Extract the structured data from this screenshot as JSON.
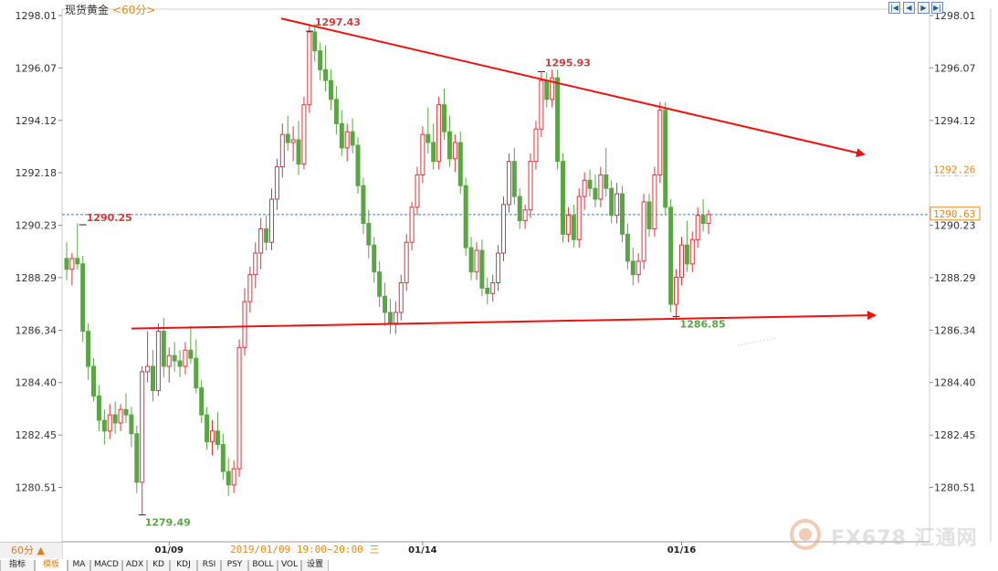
{
  "header": {
    "title": "现货黄金",
    "period": "<60分>"
  },
  "controls": {
    "first_icon": "first-page-icon",
    "prev_icon": "prev-page-icon",
    "next_icon": "next-page-icon",
    "last_icon": "last-page-icon"
  },
  "footer": {
    "period_selector": "60分 ▲",
    "tabs": [
      "指标",
      "模板",
      "MA",
      "MACD",
      "ADX",
      "KD",
      "KDJ",
      "RSI",
      "PSY",
      "BOLL",
      "VOL",
      "设置"
    ],
    "active_tab": "模板"
  },
  "watermark": "FX678 汇通网",
  "colors": {
    "up": "#e0333a",
    "down": "#5aa545",
    "trendline": "#ee1111",
    "current_line": "#4a7cc0",
    "orange": "#e08a1a"
  },
  "chart_data": {
    "type": "candlestick",
    "title": "现货黄金",
    "period": "60分",
    "y_ticks": [
      "1298.01",
      "1296.07",
      "1294.12",
      "1292.18",
      "1290.23",
      "1288.29",
      "1286.34",
      "1284.40",
      "1282.45",
      "1280.51"
    ],
    "ylim": [
      1279.0,
      1298.5
    ],
    "x_labels": [
      "01/09",
      "01/14",
      "01/16"
    ],
    "crosshair_label": "2019/01/09 19:00~20:00 三",
    "price_labels": [
      {
        "text": "1297.43",
        "value": 1297.43
      },
      {
        "text": "1295.93",
        "value": 1295.93
      },
      {
        "text": "1290.25",
        "value": 1290.25
      },
      {
        "text": "1286.85",
        "value": 1286.85
      },
      {
        "text": "1279.49",
        "value": 1279.49
      }
    ],
    "right_axis_tags": [
      {
        "text": "1292.26",
        "value": 1292.26
      },
      {
        "text": "1290.63",
        "value": 1290.63
      }
    ],
    "current_price": 1290.63,
    "trendlines": [
      {
        "name": "resistance",
        "from": [
          0,
          1297.9
        ],
        "to": [
          118,
          1292.3
        ]
      },
      {
        "name": "support",
        "from": [
          12,
          1286.4
        ],
        "to": [
          119,
          1286.8
        ]
      }
    ],
    "grid": true,
    "candles": [
      [
        1289.0,
        1289.6,
        1288.2,
        1288.6
      ],
      [
        1288.6,
        1289.2,
        1288.0,
        1289.0
      ],
      [
        1289.0,
        1290.3,
        1288.6,
        1288.8
      ],
      [
        1288.8,
        1289.1,
        1285.9,
        1286.3
      ],
      [
        1286.3,
        1286.6,
        1284.5,
        1285.0
      ],
      [
        1285.0,
        1285.3,
        1283.7,
        1283.9
      ],
      [
        1283.9,
        1284.3,
        1282.6,
        1283.0
      ],
      [
        1283.0,
        1283.4,
        1282.1,
        1282.6
      ],
      [
        1282.6,
        1283.6,
        1282.3,
        1283.2
      ],
      [
        1283.2,
        1283.7,
        1282.5,
        1282.9
      ],
      [
        1282.9,
        1283.6,
        1282.6,
        1283.4
      ],
      [
        1283.4,
        1284.0,
        1282.9,
        1283.2
      ],
      [
        1283.2,
        1283.5,
        1282.0,
        1282.5
      ],
      [
        1282.5,
        1282.8,
        1280.3,
        1280.7
      ],
      [
        1280.7,
        1285.0,
        1279.5,
        1284.8
      ],
      [
        1284.8,
        1286.3,
        1284.4,
        1285.0
      ],
      [
        1285.0,
        1285.6,
        1283.7,
        1284.1
      ],
      [
        1284.1,
        1286.6,
        1283.9,
        1286.3
      ],
      [
        1286.3,
        1286.8,
        1284.6,
        1285.0
      ],
      [
        1285.0,
        1285.7,
        1284.4,
        1285.4
      ],
      [
        1285.4,
        1285.9,
        1284.8,
        1285.2
      ],
      [
        1285.2,
        1285.6,
        1284.6,
        1285.0
      ],
      [
        1285.0,
        1285.9,
        1284.7,
        1285.6
      ],
      [
        1285.6,
        1286.5,
        1285.1,
        1285.3
      ],
      [
        1285.3,
        1286.0,
        1284.0,
        1284.2
      ],
      [
        1284.2,
        1284.5,
        1282.9,
        1283.2
      ],
      [
        1283.2,
        1283.5,
        1281.9,
        1282.2
      ],
      [
        1282.2,
        1283.0,
        1281.7,
        1282.6
      ],
      [
        1282.6,
        1283.3,
        1281.9,
        1282.1
      ],
      [
        1282.1,
        1282.5,
        1280.8,
        1281.1
      ],
      [
        1281.1,
        1281.6,
        1280.2,
        1280.6
      ],
      [
        1280.6,
        1281.5,
        1280.3,
        1281.2
      ],
      [
        1281.2,
        1286.0,
        1280.9,
        1285.7
      ],
      [
        1285.7,
        1287.9,
        1285.4,
        1287.4
      ],
      [
        1287.4,
        1288.7,
        1287.0,
        1288.4
      ],
      [
        1288.4,
        1289.6,
        1287.9,
        1289.2
      ],
      [
        1289.2,
        1290.5,
        1288.6,
        1290.1
      ],
      [
        1290.1,
        1290.6,
        1289.3,
        1289.6
      ],
      [
        1289.6,
        1291.6,
        1289.3,
        1291.2
      ],
      [
        1291.2,
        1292.7,
        1290.8,
        1292.4
      ],
      [
        1292.4,
        1294.0,
        1292.0,
        1293.6
      ],
      [
        1293.6,
        1294.3,
        1293.0,
        1293.3
      ],
      [
        1293.3,
        1293.9,
        1292.6,
        1293.4
      ],
      [
        1293.4,
        1294.1,
        1292.1,
        1292.5
      ],
      [
        1292.5,
        1295.0,
        1292.3,
        1294.7
      ],
      [
        1294.7,
        1297.7,
        1294.4,
        1297.4
      ],
      [
        1297.4,
        1297.7,
        1296.3,
        1296.7
      ],
      [
        1296.7,
        1297.0,
        1295.6,
        1296.0
      ],
      [
        1296.0,
        1296.9,
        1295.2,
        1295.6
      ],
      [
        1295.6,
        1296.0,
        1294.5,
        1294.9
      ],
      [
        1294.9,
        1295.4,
        1293.6,
        1294.0
      ],
      [
        1294.0,
        1294.5,
        1292.8,
        1293.1
      ],
      [
        1293.1,
        1294.0,
        1292.6,
        1293.7
      ],
      [
        1293.7,
        1294.2,
        1292.9,
        1293.2
      ],
      [
        1293.2,
        1293.5,
        1291.4,
        1291.7
      ],
      [
        1291.7,
        1292.0,
        1289.9,
        1290.3
      ],
      [
        1290.3,
        1290.8,
        1289.0,
        1289.5
      ],
      [
        1289.5,
        1289.8,
        1288.1,
        1288.5
      ],
      [
        1288.5,
        1288.9,
        1287.2,
        1287.6
      ],
      [
        1287.6,
        1288.1,
        1286.5,
        1287.0
      ],
      [
        1287.0,
        1287.5,
        1286.2,
        1286.6
      ],
      [
        1286.6,
        1287.4,
        1286.2,
        1287.0
      ],
      [
        1287.0,
        1288.4,
        1286.7,
        1288.1
      ],
      [
        1288.1,
        1289.9,
        1287.8,
        1289.6
      ],
      [
        1289.6,
        1291.1,
        1289.3,
        1290.9
      ],
      [
        1290.9,
        1292.4,
        1290.6,
        1292.1
      ],
      [
        1292.1,
        1293.9,
        1291.8,
        1293.6
      ],
      [
        1293.6,
        1294.6,
        1292.9,
        1293.3
      ],
      [
        1293.3,
        1294.0,
        1292.3,
        1292.6
      ],
      [
        1292.6,
        1295.0,
        1292.3,
        1294.7
      ],
      [
        1294.7,
        1295.3,
        1293.4,
        1293.7
      ],
      [
        1293.7,
        1294.3,
        1292.4,
        1292.7
      ],
      [
        1292.7,
        1293.6,
        1292.2,
        1293.3
      ],
      [
        1293.3,
        1293.7,
        1291.4,
        1291.7
      ],
      [
        1291.7,
        1292.0,
        1289.1,
        1289.4
      ],
      [
        1289.4,
        1289.8,
        1288.2,
        1288.5
      ],
      [
        1288.5,
        1289.6,
        1288.2,
        1289.3
      ],
      [
        1289.3,
        1289.7,
        1287.6,
        1287.9
      ],
      [
        1287.9,
        1288.3,
        1287.3,
        1287.7
      ],
      [
        1287.7,
        1288.4,
        1287.4,
        1288.1
      ],
      [
        1288.1,
        1289.5,
        1287.8,
        1289.2
      ],
      [
        1289.2,
        1291.3,
        1288.9,
        1291.0
      ],
      [
        1291.0,
        1292.9,
        1290.7,
        1292.6
      ],
      [
        1292.6,
        1293.1,
        1291.0,
        1291.3
      ],
      [
        1291.3,
        1291.6,
        1290.1,
        1290.4
      ],
      [
        1290.4,
        1291.0,
        1290.1,
        1290.8
      ],
      [
        1290.8,
        1292.9,
        1290.5,
        1292.6
      ],
      [
        1292.6,
        1294.1,
        1292.3,
        1293.8
      ],
      [
        1293.8,
        1295.9,
        1293.5,
        1295.6
      ],
      [
        1295.6,
        1295.9,
        1294.6,
        1294.9
      ],
      [
        1294.9,
        1296.0,
        1294.6,
        1295.7
      ],
      [
        1295.7,
        1296.0,
        1292.3,
        1292.6
      ],
      [
        1292.6,
        1292.9,
        1289.6,
        1289.9
      ],
      [
        1289.9,
        1290.9,
        1289.6,
        1290.6
      ],
      [
        1290.6,
        1291.0,
        1289.4,
        1289.7
      ],
      [
        1289.7,
        1291.6,
        1289.4,
        1291.3
      ],
      [
        1291.3,
        1292.2,
        1290.8,
        1291.9
      ],
      [
        1291.9,
        1292.3,
        1291.3,
        1291.6
      ],
      [
        1291.6,
        1292.1,
        1290.9,
        1291.2
      ],
      [
        1291.2,
        1292.4,
        1290.9,
        1292.1
      ],
      [
        1292.1,
        1293.1,
        1291.3,
        1291.6
      ],
      [
        1291.6,
        1291.9,
        1290.3,
        1290.6
      ],
      [
        1290.6,
        1291.8,
        1290.3,
        1291.4
      ],
      [
        1291.4,
        1291.7,
        1289.6,
        1289.9
      ],
      [
        1289.9,
        1290.3,
        1288.6,
        1288.9
      ],
      [
        1288.9,
        1289.4,
        1288.0,
        1288.4
      ],
      [
        1288.4,
        1289.2,
        1288.1,
        1288.9
      ],
      [
        1288.9,
        1291.4,
        1288.6,
        1291.1
      ],
      [
        1291.1,
        1291.4,
        1289.8,
        1290.1
      ],
      [
        1290.1,
        1292.4,
        1289.8,
        1292.1
      ],
      [
        1292.1,
        1294.8,
        1291.8,
        1294.5
      ],
      [
        1294.5,
        1294.8,
        1290.6,
        1290.9
      ],
      [
        1290.9,
        1291.2,
        1287.0,
        1287.3
      ],
      [
        1287.3,
        1288.6,
        1286.8,
        1288.3
      ],
      [
        1288.3,
        1289.8,
        1288.0,
        1289.5
      ],
      [
        1289.5,
        1290.4,
        1288.5,
        1288.8
      ],
      [
        1288.8,
        1290.0,
        1288.5,
        1289.7
      ],
      [
        1289.7,
        1290.9,
        1289.4,
        1290.6
      ],
      [
        1290.6,
        1291.2,
        1290.0,
        1290.3
      ],
      [
        1290.3,
        1290.8,
        1289.9,
        1290.63
      ]
    ]
  }
}
